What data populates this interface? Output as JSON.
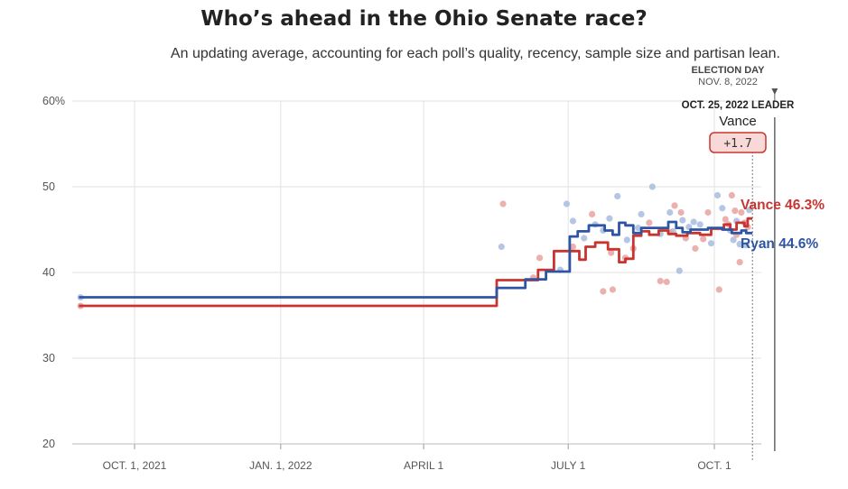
{
  "chart_data": {
    "type": "line",
    "title": "Who’s ahead in the Ohio Senate race?",
    "subtitle": "An updating average, accounting for each poll’s quality, recency, sample size and partisan lean.",
    "y_ticks": [
      {
        "value": 60,
        "label": "60%"
      },
      {
        "value": 50,
        "label": "50"
      },
      {
        "value": 40,
        "label": "40"
      },
      {
        "value": 30,
        "label": "30"
      },
      {
        "value": 20,
        "label": "20"
      }
    ],
    "ylim": [
      20,
      60
    ],
    "x_ticks": [
      {
        "day": 18,
        "label": "OCT. 1, 2021"
      },
      {
        "day": 110,
        "label": "JAN. 1, 2022"
      },
      {
        "day": 200,
        "label": "APRIL 1"
      },
      {
        "day": 291,
        "label": "JULY 1"
      },
      {
        "day": 383,
        "label": "OCT. 1"
      }
    ],
    "x_range": [
      -19,
      416
    ],
    "election_day": {
      "day": 421,
      "label": "ELECTION DAY",
      "date": "NOV. 8, 2022"
    },
    "current_day": 407,
    "leader": {
      "label": "OCT. 25, 2022 LEADER",
      "name": "Vance",
      "margin": "+1.7"
    },
    "colors": {
      "vance": "#c83530",
      "ryan": "#2d55a4",
      "vance_poll": "#e8a3a0",
      "ryan_poll": "#a8bce0"
    },
    "series": [
      {
        "name": "Vance",
        "end_label": "Vance 46.3%",
        "points": [
          [
            -17,
            36.1
          ],
          [
            246,
            36.1
          ],
          [
            246,
            39.1
          ],
          [
            272,
            39.1
          ],
          [
            272,
            40.3
          ],
          [
            282,
            40.3
          ],
          [
            282,
            42.5
          ],
          [
            298,
            42.5
          ],
          [
            298,
            41.5
          ],
          [
            302,
            41.5
          ],
          [
            302,
            43.0
          ],
          [
            308,
            43.0
          ],
          [
            308,
            43.5
          ],
          [
            316,
            43.5
          ],
          [
            316,
            42.7
          ],
          [
            323,
            42.7
          ],
          [
            323,
            41.2
          ],
          [
            327,
            41.2
          ],
          [
            327,
            41.6
          ],
          [
            332,
            41.6
          ],
          [
            332,
            44.3
          ],
          [
            337,
            44.3
          ],
          [
            337,
            44.8
          ],
          [
            342,
            44.8
          ],
          [
            342,
            44.4
          ],
          [
            348,
            44.4
          ],
          [
            348,
            44.9
          ],
          [
            354,
            44.9
          ],
          [
            354,
            44.5
          ],
          [
            359,
            44.5
          ],
          [
            359,
            44.3
          ],
          [
            366,
            44.3
          ],
          [
            366,
            44.6
          ],
          [
            374,
            44.6
          ],
          [
            374,
            44.4
          ],
          [
            381,
            44.4
          ],
          [
            381,
            45.1
          ],
          [
            389,
            45.1
          ],
          [
            389,
            45.6
          ],
          [
            393,
            45.6
          ],
          [
            393,
            45.0
          ],
          [
            397,
            45.0
          ],
          [
            397,
            45.8
          ],
          [
            402,
            45.8
          ],
          [
            402,
            45.4
          ],
          [
            404,
            45.4
          ],
          [
            404,
            46.3
          ],
          [
            407,
            46.3
          ]
        ]
      },
      {
        "name": "Ryan",
        "end_label": "Ryan 44.6%",
        "points": [
          [
            -17,
            37.1
          ],
          [
            246,
            37.1
          ],
          [
            246,
            38.2
          ],
          [
            264,
            38.2
          ],
          [
            264,
            39.2
          ],
          [
            277,
            39.2
          ],
          [
            277,
            40.1
          ],
          [
            292,
            40.1
          ],
          [
            292,
            44.2
          ],
          [
            297,
            44.2
          ],
          [
            297,
            44.8
          ],
          [
            304,
            44.8
          ],
          [
            304,
            45.5
          ],
          [
            314,
            45.5
          ],
          [
            314,
            44.9
          ],
          [
            319,
            44.9
          ],
          [
            319,
            44.4
          ],
          [
            323,
            44.4
          ],
          [
            323,
            45.8
          ],
          [
            327,
            45.8
          ],
          [
            327,
            45.5
          ],
          [
            332,
            45.5
          ],
          [
            332,
            44.6
          ],
          [
            337,
            44.6
          ],
          [
            337,
            45.2
          ],
          [
            354,
            45.2
          ],
          [
            354,
            45.9
          ],
          [
            359,
            45.9
          ],
          [
            359,
            45.2
          ],
          [
            363,
            45.2
          ],
          [
            363,
            44.7
          ],
          [
            368,
            44.7
          ],
          [
            368,
            45.0
          ],
          [
            379,
            45.0
          ],
          [
            379,
            45.2
          ],
          [
            388,
            45.2
          ],
          [
            388,
            45.0
          ],
          [
            394,
            45.0
          ],
          [
            394,
            44.6
          ],
          [
            400,
            44.6
          ],
          [
            400,
            44.9
          ],
          [
            403,
            44.9
          ],
          [
            403,
            44.6
          ],
          [
            407,
            44.6
          ]
        ]
      }
    ],
    "polls": {
      "vance": [
        [
          -16,
          36.1
        ],
        [
          250,
          48.0
        ],
        [
          273,
          41.7
        ],
        [
          269,
          39.4
        ],
        [
          294,
          43.0
        ],
        [
          306,
          46.8
        ],
        [
          313,
          37.8
        ],
        [
          319,
          38.0
        ],
        [
          318,
          42.3
        ],
        [
          327,
          41.7
        ],
        [
          332,
          42.8
        ],
        [
          342,
          45.8
        ],
        [
          349,
          39.0
        ],
        [
          353,
          38.9
        ],
        [
          355,
          44.7
        ],
        [
          358,
          47.8
        ],
        [
          362,
          47.0
        ],
        [
          365,
          44.0
        ],
        [
          371,
          42.8
        ],
        [
          376,
          43.9
        ],
        [
          379,
          47.0
        ],
        [
          386,
          38.0
        ],
        [
          390,
          46.2
        ],
        [
          392,
          45.6
        ],
        [
          394,
          49.0
        ],
        [
          396,
          47.2
        ],
        [
          397,
          44.4
        ],
        [
          399,
          41.2
        ],
        [
          400,
          47.0
        ],
        [
          402,
          45.8
        ],
        [
          404,
          45.3
        ]
      ],
      "ryan": [
        [
          -16,
          37.1
        ],
        [
          249,
          43.0
        ],
        [
          286,
          40.3
        ],
        [
          290,
          48.0
        ],
        [
          294,
          46.0
        ],
        [
          301,
          44.0
        ],
        [
          308,
          45.6
        ],
        [
          313,
          44.9
        ],
        [
          317,
          46.3
        ],
        [
          322,
          48.9
        ],
        [
          328,
          43.8
        ],
        [
          335,
          45.2
        ],
        [
          337,
          46.8
        ],
        [
          344,
          50.0
        ],
        [
          349,
          44.5
        ],
        [
          355,
          47.0
        ],
        [
          357,
          44.8
        ],
        [
          361,
          40.2
        ],
        [
          363,
          46.1
        ],
        [
          367,
          45.3
        ],
        [
          370,
          45.9
        ],
        [
          374,
          45.6
        ],
        [
          381,
          43.4
        ],
        [
          385,
          49.0
        ],
        [
          388,
          47.5
        ],
        [
          393,
          44.9
        ],
        [
          395,
          43.8
        ],
        [
          397,
          46.0
        ],
        [
          399,
          43.3
        ],
        [
          403,
          43.2
        ],
        [
          405,
          47.3
        ]
      ]
    }
  }
}
